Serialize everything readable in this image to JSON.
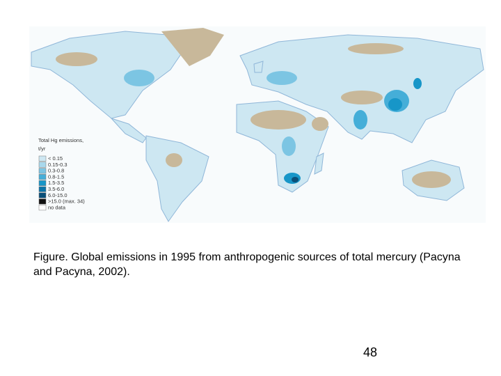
{
  "map": {
    "legend": {
      "title": "Total Hg emissions,",
      "unit": "t/yr",
      "items": [
        {
          "label": "< 0.15",
          "color": "#cde7f2"
        },
        {
          "label": "0.15-0.3",
          "color": "#a9d8ec"
        },
        {
          "label": "0.3-0.8",
          "color": "#7cc5e3"
        },
        {
          "label": "0.8-1.5",
          "color": "#45aed8"
        },
        {
          "label": "1.5-3.5",
          "color": "#1796c8"
        },
        {
          "label": "3.5-6.0",
          "color": "#0b74a8"
        },
        {
          "label": "6.0-15.0",
          "color": "#0a4f78"
        },
        {
          "label": ">15.0 (max. 34)",
          "color": "#111111"
        },
        {
          "label": "no data",
          "color": "#ffffff"
        }
      ]
    }
  },
  "caption": "Figure. Global emissions in 1995 from anthropogenic sources of total mercury (Pacyna and Pacyna, 2002).",
  "page_number": "48"
}
